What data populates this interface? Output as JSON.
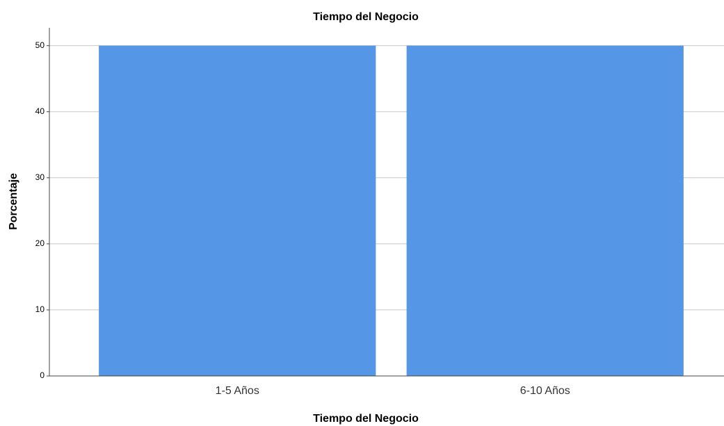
{
  "chart_data": {
    "type": "bar",
    "title": "Tiempo del Negocio",
    "x_label": "Tiempo del Negocio",
    "y_label": "Porcentaje",
    "categories": [
      "1-5 Años",
      "6-10 Años"
    ],
    "values": [
      50,
      50
    ],
    "color": "#5596e6",
    "ylim": [
      0,
      52.7
    ],
    "yticks": [
      0,
      10,
      20,
      30,
      40,
      50
    ],
    "grid": true
  }
}
